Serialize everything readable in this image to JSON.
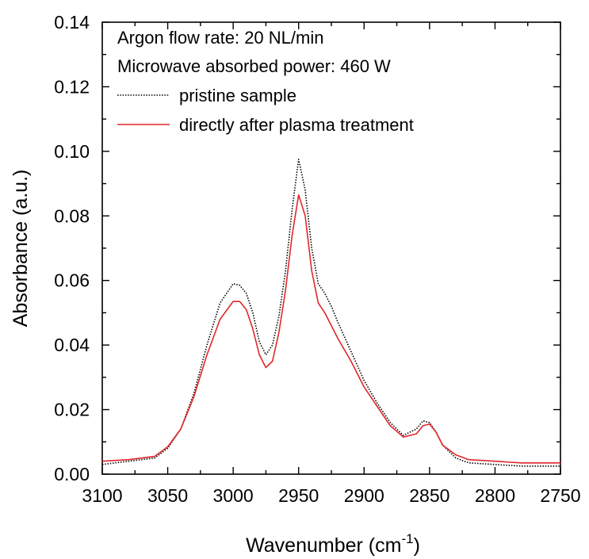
{
  "chart_data": {
    "type": "line",
    "xlabel": "Wavenumber (cm",
    "xlabel_sup": "-1",
    "xlabel_close": ")",
    "ylabel": "Absorbance (a.u.)",
    "xlim": [
      3100,
      2750
    ],
    "ylim": [
      0,
      0.14
    ],
    "x_reversed": true,
    "x_ticks": [
      "3100",
      "3050",
      "3000",
      "2950",
      "2900",
      "2850",
      "2800",
      "2750"
    ],
    "y_ticks": [
      "0.00",
      "0.02",
      "0.04",
      "0.06",
      "0.08",
      "0.10",
      "0.12",
      "0.14"
    ],
    "grid": false,
    "legend_position": "top-left",
    "annotations": [
      "Argon flow rate: 20 NL/min",
      "Microwave absorbed power: 460 W"
    ],
    "series": [
      {
        "name": "pristine sample",
        "color": "#000000",
        "style": "dotted",
        "x": [
          3100,
          3080,
          3060,
          3050,
          3040,
          3030,
          3020,
          3010,
          3000,
          2995,
          2990,
          2985,
          2980,
          2975,
          2970,
          2965,
          2960,
          2955,
          2950,
          2945,
          2940,
          2935,
          2930,
          2925,
          2920,
          2910,
          2900,
          2890,
          2880,
          2870,
          2860,
          2855,
          2850,
          2845,
          2840,
          2830,
          2820,
          2800,
          2780,
          2750
        ],
        "y": [
          0.003,
          0.004,
          0.005,
          0.008,
          0.014,
          0.025,
          0.04,
          0.053,
          0.059,
          0.0585,
          0.056,
          0.05,
          0.041,
          0.037,
          0.04,
          0.049,
          0.063,
          0.082,
          0.0975,
          0.088,
          0.07,
          0.059,
          0.056,
          0.052,
          0.047,
          0.038,
          0.029,
          0.022,
          0.016,
          0.012,
          0.014,
          0.0165,
          0.016,
          0.013,
          0.009,
          0.005,
          0.0035,
          0.003,
          0.0025,
          0.0025
        ]
      },
      {
        "name": "directly after plasma treatment",
        "color": "#e0262b",
        "style": "solid",
        "x": [
          3100,
          3080,
          3060,
          3050,
          3040,
          3030,
          3020,
          3010,
          3000,
          2995,
          2990,
          2985,
          2980,
          2975,
          2970,
          2965,
          2960,
          2955,
          2950,
          2945,
          2940,
          2935,
          2930,
          2925,
          2920,
          2910,
          2900,
          2890,
          2880,
          2870,
          2860,
          2855,
          2850,
          2845,
          2840,
          2830,
          2820,
          2800,
          2780,
          2750
        ],
        "y": [
          0.004,
          0.0045,
          0.0055,
          0.0085,
          0.014,
          0.024,
          0.037,
          0.048,
          0.0535,
          0.0535,
          0.051,
          0.045,
          0.037,
          0.033,
          0.035,
          0.044,
          0.057,
          0.074,
          0.0865,
          0.08,
          0.063,
          0.053,
          0.05,
          0.046,
          0.042,
          0.035,
          0.027,
          0.021,
          0.015,
          0.0115,
          0.0125,
          0.015,
          0.0155,
          0.013,
          0.009,
          0.006,
          0.0045,
          0.004,
          0.0035,
          0.0035
        ]
      }
    ]
  }
}
